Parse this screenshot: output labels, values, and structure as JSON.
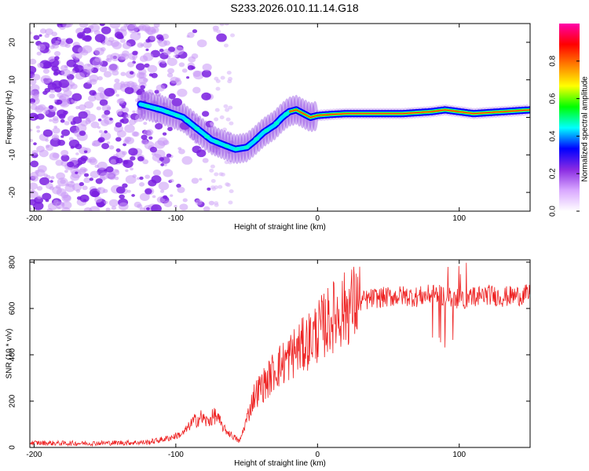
{
  "title": "S233.2026.010.11.14.G18",
  "chart_data": [
    {
      "type": "heatmap",
      "xlabel": "Height of straight line (km)",
      "ylabel": "Frequency (Hz)",
      "xlim": [
        -203,
        150
      ],
      "ylim": [
        -25,
        25
      ],
      "xticks": [
        -200,
        -100,
        0,
        100
      ],
      "yticks": [
        20,
        10,
        0,
        -10,
        -20
      ],
      "colorbar": {
        "label": "Normalized spectral amplitude",
        "range": [
          0,
          1
        ],
        "ticks": [
          "0.0",
          "0.2",
          "0.4",
          "0.6",
          "0.8"
        ],
        "colors": [
          "#ffffff",
          "#d9a8ff",
          "#8a2be2",
          "#0000ff",
          "#00ffff",
          "#00ff00",
          "#ffff00",
          "#ff8000",
          "#ff0000",
          "#ff00aa"
        ]
      },
      "ridge": {
        "x": [
          -125,
          -110,
          -95,
          -85,
          -75,
          -65,
          -58,
          -50,
          -45,
          -38,
          -30,
          -25,
          -20,
          -15,
          -10,
          -5,
          0,
          10,
          20,
          40,
          60,
          80,
          90,
          100,
          110,
          130,
          150
        ],
        "y": [
          3.5,
          2.0,
          0.0,
          -3.0,
          -6.0,
          -7.5,
          -8.5,
          -8.0,
          -6.5,
          -4.0,
          -2.0,
          0.0,
          1.5,
          2.0,
          1.0,
          0.0,
          0.5,
          0.8,
          1.0,
          1.0,
          1.0,
          1.5,
          2.0,
          1.5,
          1.0,
          1.5,
          2.0
        ]
      }
    },
    {
      "type": "line",
      "xlabel": "Height of straight line (km)",
      "ylabel": "SNR (10 * v/v)",
      "xlim": [
        -203,
        150
      ],
      "ylim": [
        0,
        810
      ],
      "xticks": [
        -200,
        -100,
        0,
        100
      ],
      "yticks": [
        800,
        600,
        400,
        200,
        0
      ],
      "series": [
        {
          "name": "SNR",
          "color": "#ee2222",
          "x": [
            -203,
            -180,
            -160,
            -140,
            -120,
            -105,
            -95,
            -88,
            -82,
            -78,
            -72,
            -66,
            -60,
            -55,
            -50,
            -45,
            -40,
            -35,
            -30,
            -25,
            -20,
            -15,
            -10,
            -5,
            0,
            5,
            10,
            15,
            20,
            25,
            30,
            40,
            50,
            60,
            70,
            80,
            90,
            100,
            110,
            120,
            130,
            140,
            150
          ],
          "y": [
            20,
            18,
            18,
            20,
            22,
            40,
            60,
            110,
            130,
            110,
            140,
            80,
            50,
            25,
            120,
            220,
            260,
            290,
            340,
            360,
            390,
            420,
            440,
            470,
            500,
            530,
            560,
            580,
            600,
            620,
            630,
            645,
            650,
            655,
            650,
            660,
            655,
            640,
            650,
            660,
            650,
            655,
            660
          ]
        }
      ]
    }
  ]
}
